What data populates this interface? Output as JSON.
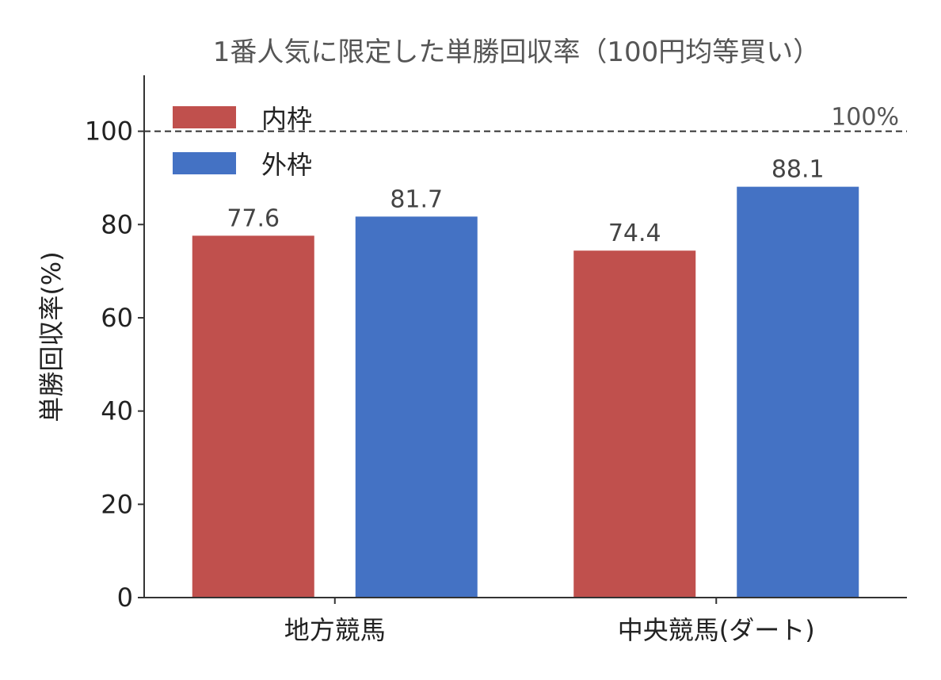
{
  "chart_data": {
    "type": "bar",
    "title": "1番人気に限定した単勝回収率（100円均等買い）",
    "xlabel": "",
    "ylabel": "単勝回収率(%)",
    "categories": [
      "地方競馬",
      "中央競馬(ダート)"
    ],
    "series": [
      {
        "name": "内枠",
        "values": [
          77.6,
          74.4
        ],
        "color": "#c0504d"
      },
      {
        "name": "外枠",
        "values": [
          81.7,
          88.1
        ],
        "color": "#4472c4"
      }
    ],
    "ylim": [
      0,
      112
    ],
    "yticks": [
      0,
      20,
      40,
      60,
      80,
      100
    ],
    "data_labels": [
      "77.6",
      "81.7",
      "74.4",
      "88.1"
    ],
    "reference_line": {
      "value": 100,
      "label": "100%",
      "style": "dashed"
    },
    "legend_position": "top-left",
    "grid": false
  }
}
